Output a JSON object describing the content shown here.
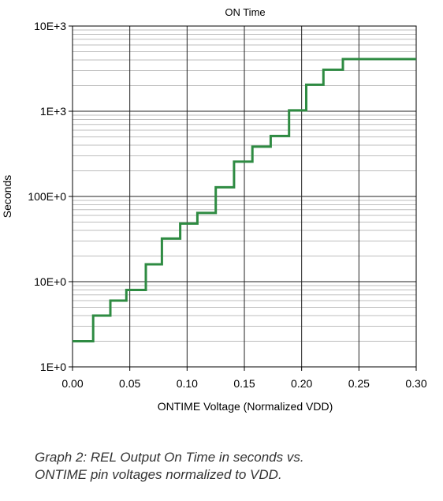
{
  "chart_data": {
    "type": "line",
    "title": "ON Time",
    "xlabel": "ONTIME Voltage (Normalized VDD)",
    "ylabel": "Seconds",
    "xlim": [
      0,
      0.3
    ],
    "ylim": [
      1,
      10000
    ],
    "y_scale": "log",
    "grid": true,
    "x_ticks": [
      0,
      0.05,
      0.1,
      0.15,
      0.2,
      0.25,
      0.3
    ],
    "x_tick_labels": [
      "0.00",
      "0.05",
      "0.10",
      "0.15",
      "0.20",
      "0.25",
      "0.30"
    ],
    "y_ticks": [
      1,
      10,
      100,
      1000,
      10000
    ],
    "y_tick_labels": [
      "1E+0",
      "10E+0",
      "100E+0",
      "1E+3",
      "10E+3"
    ],
    "line_color": "#2e8b42",
    "series": [
      {
        "x": [
          0,
          0.018,
          0.018,
          0.033,
          0.033,
          0.047,
          0.047,
          0.064,
          0.064,
          0.078,
          0.078,
          0.094,
          0.094,
          0.109,
          0.109,
          0.125,
          0.125,
          0.141,
          0.141,
          0.157,
          0.157,
          0.173,
          0.173,
          0.189,
          0.189,
          0.204,
          0.204,
          0.219,
          0.219,
          0.236,
          0.236,
          0.3
        ],
        "y": [
          2,
          2,
          4,
          4,
          6,
          6,
          8,
          8,
          16,
          16,
          32,
          32,
          48,
          48,
          64,
          64,
          128,
          128,
          256,
          256,
          384,
          384,
          512,
          512,
          1024,
          1024,
          2048,
          2048,
          3072,
          3072,
          4096,
          4096
        ]
      }
    ]
  },
  "caption": {
    "line1": "Graph 2: REL Output On Time in seconds vs.",
    "line2": "ONTIME pin voltages normalized to VDD."
  }
}
